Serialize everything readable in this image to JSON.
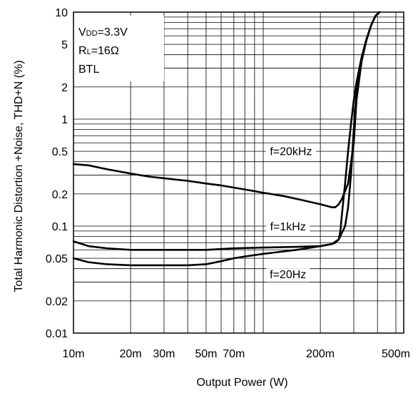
{
  "chart_data": {
    "type": "line",
    "xlabel": "Output Power (W)",
    "ylabel": "Total Harmonic Distortion +Noise, THD+N (%)",
    "xscale": "log",
    "yscale": "log",
    "xlim": [
      0.01,
      0.55
    ],
    "ylim": [
      0.01,
      10
    ],
    "grid": true,
    "x_ticks": [
      {
        "value": 0.01,
        "label": "10m"
      },
      {
        "value": 0.02,
        "label": "20m"
      },
      {
        "value": 0.03,
        "label": "30m"
      },
      {
        "value": 0.05,
        "label": "50m"
      },
      {
        "value": 0.07,
        "label": "70m"
      },
      {
        "value": 0.2,
        "label": "200m"
      },
      {
        "value": 0.5,
        "label": "500m"
      }
    ],
    "y_ticks": [
      {
        "value": 0.01,
        "label": "0.01"
      },
      {
        "value": 0.02,
        "label": "0.02"
      },
      {
        "value": 0.05,
        "label": "0.05"
      },
      {
        "value": 0.1,
        "label": "0.1"
      },
      {
        "value": 0.2,
        "label": "0.2"
      },
      {
        "value": 0.5,
        "label": "0.5"
      },
      {
        "value": 1,
        "label": "1"
      },
      {
        "value": 2,
        "label": "2"
      },
      {
        "value": 5,
        "label": "5"
      },
      {
        "value": 10,
        "label": "10"
      }
    ],
    "conditions": {
      "vdd_main": "V",
      "vdd_sub": "DD",
      "vdd_value": "=3.3V",
      "rl_main": "R",
      "rl_sub": "L",
      "rl_value": "=16Ω",
      "mode": "BTL"
    },
    "series": [
      {
        "name": "f=20kHz",
        "x": [
          0.01,
          0.012,
          0.015,
          0.02,
          0.025,
          0.03,
          0.04,
          0.05,
          0.06,
          0.08,
          0.1,
          0.13,
          0.16,
          0.2,
          0.23,
          0.24,
          0.25,
          0.26,
          0.28,
          0.3,
          0.31,
          0.33,
          0.35,
          0.37,
          0.39,
          0.41
        ],
        "y": [
          0.38,
          0.37,
          0.34,
          0.31,
          0.29,
          0.28,
          0.265,
          0.25,
          0.24,
          0.22,
          0.205,
          0.19,
          0.175,
          0.16,
          0.15,
          0.15,
          0.16,
          0.18,
          0.25,
          0.6,
          1.5,
          3.5,
          5.5,
          7.5,
          9.2,
          10
        ]
      },
      {
        "name": "f=1kHz",
        "x": [
          0.01,
          0.012,
          0.015,
          0.02,
          0.03,
          0.05,
          0.07,
          0.1,
          0.15,
          0.2,
          0.23,
          0.25,
          0.27,
          0.28,
          0.29,
          0.3,
          0.31,
          0.33,
          0.35,
          0.37,
          0.39,
          0.41
        ],
        "y": [
          0.072,
          0.065,
          0.062,
          0.06,
          0.06,
          0.06,
          0.062,
          0.063,
          0.064,
          0.065,
          0.068,
          0.075,
          0.1,
          0.15,
          0.3,
          0.8,
          1.8,
          3.5,
          5.5,
          7.5,
          9.2,
          10
        ]
      },
      {
        "name": "f=20Hz",
        "x": [
          0.01,
          0.012,
          0.015,
          0.02,
          0.03,
          0.04,
          0.05,
          0.06,
          0.07,
          0.08,
          0.1,
          0.15,
          0.2,
          0.23,
          0.24,
          0.25,
          0.255,
          0.26,
          0.27,
          0.28,
          0.29,
          0.3,
          0.31,
          0.33,
          0.35,
          0.37,
          0.39,
          0.41
        ],
        "y": [
          0.05,
          0.046,
          0.044,
          0.043,
          0.043,
          0.043,
          0.044,
          0.047,
          0.05,
          0.052,
          0.055,
          0.06,
          0.065,
          0.068,
          0.07,
          0.075,
          0.09,
          0.13,
          0.25,
          0.5,
          0.9,
          1.5,
          2.2,
          3.8,
          5.6,
          7.5,
          9.2,
          10
        ]
      }
    ],
    "annotations": [
      {
        "text": "f=20kHz",
        "x": 0.14,
        "y": 0.46
      },
      {
        "text": "f=1kHz",
        "x": 0.135,
        "y": 0.091
      },
      {
        "text": "f=20Hz",
        "x": 0.135,
        "y": 0.0325
      }
    ]
  }
}
